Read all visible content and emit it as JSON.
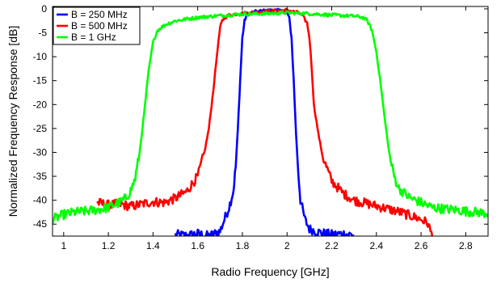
{
  "chart_data": {
    "type": "line",
    "xlabel": "Radio Frequency [GHz]",
    "ylabel": "Normalized Frequency Response [dB]",
    "xlim": [
      0.95,
      2.9
    ],
    "ylim": [
      -47.5,
      0.5
    ],
    "xticks": [
      1,
      1.2,
      1.4,
      1.6,
      1.8,
      2,
      2.2,
      2.4,
      2.6,
      2.8
    ],
    "xtick_labels": [
      "1",
      "1.2",
      "1.4",
      "1.6",
      "1.8",
      "2",
      "2.2",
      "2.4",
      "2.6",
      "2.8"
    ],
    "yticks": [
      0,
      -5,
      -10,
      -15,
      -20,
      -25,
      -30,
      -35,
      -40,
      -45
    ],
    "ytick_labels": [
      "0",
      "-5",
      "-10",
      "-15",
      "-20",
      "-25",
      "-30",
      "-35",
      "-40",
      "-45"
    ],
    "grid": false,
    "legend_position": "top-left",
    "series": [
      {
        "name": "B = 250 MHz",
        "color": "#0000ff",
        "x": [
          1.5,
          1.55,
          1.6,
          1.65,
          1.7,
          1.72,
          1.74,
          1.76,
          1.77,
          1.78,
          1.79,
          1.8,
          1.81,
          1.82,
          1.84,
          1.86,
          1.9,
          1.94,
          1.98,
          2.0,
          2.01,
          2.02,
          2.03,
          2.04,
          2.05,
          2.06,
          2.08,
          2.1,
          2.15,
          2.2,
          2.25,
          2.3
        ],
        "y": [
          -47.2,
          -47.4,
          -47.0,
          -47.5,
          -46.5,
          -44.0,
          -41.5,
          -38.0,
          -33.0,
          -25.0,
          -15.0,
          -6.0,
          -2.5,
          -1.2,
          -0.8,
          -0.6,
          -0.4,
          -0.3,
          -0.4,
          -0.8,
          -2.0,
          -6.0,
          -15.0,
          -26.0,
          -34.0,
          -40.0,
          -44.0,
          -46.0,
          -46.8,
          -47.2,
          -47.0,
          -47.3
        ]
      },
      {
        "name": "B = 500 MHz",
        "color": "#ff0000",
        "x": [
          1.15,
          1.2,
          1.25,
          1.3,
          1.35,
          1.4,
          1.45,
          1.5,
          1.55,
          1.6,
          1.63,
          1.65,
          1.67,
          1.69,
          1.7,
          1.71,
          1.72,
          1.74,
          1.78,
          1.85,
          1.9,
          1.95,
          2.0,
          2.05,
          2.07,
          2.09,
          2.1,
          2.11,
          2.12,
          2.14,
          2.16,
          2.2,
          2.25,
          2.3,
          2.35,
          2.4,
          2.45,
          2.5,
          2.55,
          2.6,
          2.63,
          2.65
        ],
        "y": [
          -40.5,
          -41.0,
          -40.8,
          -41.3,
          -40.8,
          -40.3,
          -40.5,
          -39.6,
          -38.2,
          -35.0,
          -30.0,
          -25.0,
          -17.0,
          -8.0,
          -4.0,
          -2.5,
          -1.8,
          -1.3,
          -1.0,
          -0.8,
          -0.5,
          -0.4,
          -0.3,
          -0.8,
          -1.5,
          -3.0,
          -6.0,
          -12.0,
          -20.0,
          -26.0,
          -31.0,
          -36.0,
          -38.5,
          -40.0,
          -40.6,
          -41.2,
          -41.8,
          -42.4,
          -43.2,
          -44.0,
          -44.8,
          -47.5
        ]
      },
      {
        "name": "B = 1 GHz",
        "color": "#00ff00",
        "x": [
          0.95,
          1.0,
          1.05,
          1.1,
          1.15,
          1.2,
          1.25,
          1.28,
          1.3,
          1.32,
          1.34,
          1.36,
          1.38,
          1.4,
          1.42,
          1.44,
          1.46,
          1.5,
          1.6,
          1.7,
          1.8,
          1.9,
          2.0,
          2.1,
          2.2,
          2.3,
          2.34,
          2.36,
          2.38,
          2.4,
          2.42,
          2.44,
          2.46,
          2.48,
          2.5,
          2.55,
          2.6,
          2.65,
          2.7,
          2.75,
          2.8,
          2.85,
          2.9
        ],
        "y": [
          -44.0,
          -43.0,
          -42.5,
          -42.3,
          -42.0,
          -41.5,
          -40.5,
          -39.5,
          -38.0,
          -35.5,
          -30.0,
          -22.0,
          -13.0,
          -7.0,
          -4.5,
          -3.8,
          -3.2,
          -2.5,
          -1.8,
          -1.4,
          -1.1,
          -1.0,
          -0.8,
          -1.0,
          -1.3,
          -1.5,
          -1.8,
          -2.5,
          -4.5,
          -9.0,
          -16.0,
          -24.0,
          -31.0,
          -35.0,
          -37.5,
          -39.5,
          -40.5,
          -41.5,
          -41.8,
          -42.0,
          -42.3,
          -42.5,
          -42.8
        ]
      }
    ]
  }
}
